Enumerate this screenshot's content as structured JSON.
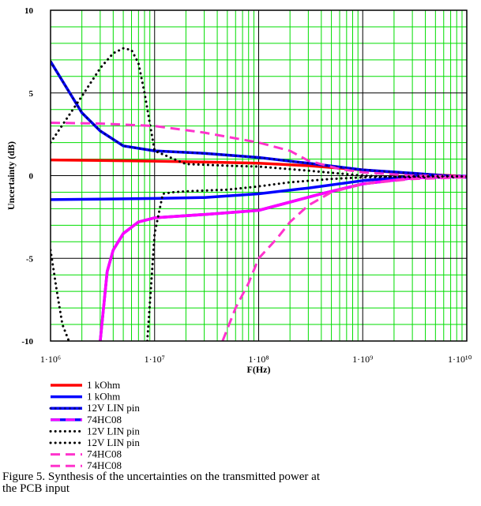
{
  "chart_data": {
    "type": "line",
    "title": "",
    "xlabel": "F(Hz)",
    "ylabel": "Uncertainty (dB)",
    "xscale": "log",
    "xlim": [
      1000000,
      10000000000
    ],
    "ylim": [
      -10,
      10
    ],
    "xticks": [
      "1·10⁶",
      "1·10⁷",
      "1·10⁸",
      "1·10⁹",
      "1·10¹⁰"
    ],
    "yticks": [
      "10",
      "5",
      "0",
      "-5",
      "-10"
    ],
    "grid": true,
    "legend_position": "bottom-left",
    "series": [
      {
        "name": "1 kOhm",
        "color": "#ff0000",
        "style": "solid",
        "x": [
          1000000,
          3000000,
          10000000,
          30000000,
          100000000,
          300000000,
          1000000000,
          3000000000,
          10000000000
        ],
        "y": [
          0.95,
          0.92,
          0.88,
          0.82,
          0.75,
          0.6,
          0.35,
          0.12,
          -0.05
        ]
      },
      {
        "name": "1 kOhm",
        "color": "#0000ff",
        "style": "solid",
        "x": [
          1000000,
          3000000,
          10000000,
          30000000,
          100000000,
          300000000,
          1000000000,
          3000000000,
          10000000000
        ],
        "y": [
          -1.45,
          -1.42,
          -1.38,
          -1.32,
          -1.1,
          -0.75,
          -0.3,
          -0.05,
          -0.03
        ]
      },
      {
        "name": "12V LIN pin",
        "color": "#000080",
        "style": "dotted",
        "x": [
          1000000,
          2000000,
          3000000,
          5000000,
          10000000,
          30000000,
          100000000,
          300000000,
          1000000000,
          3000000000,
          10000000000
        ],
        "y": [
          6.9,
          3.8,
          2.7,
          1.8,
          1.5,
          1.35,
          1.1,
          0.75,
          0.35,
          0.15,
          -0.1
        ]
      },
      {
        "name": "74HC08",
        "color": "#ff00ff",
        "style": "solid",
        "x": [
          3000000,
          3500000,
          4000000,
          5000000,
          7000000,
          10000000,
          30000000,
          100000000,
          200000000,
          400000000,
          1000000000,
          3000000000,
          10000000000
        ],
        "y": [
          -10,
          -5.8,
          -4.5,
          -3.5,
          -2.8,
          -2.55,
          -2.35,
          -2.1,
          -1.6,
          -1.1,
          -0.5,
          -0.15,
          -0.05
        ]
      },
      {
        "name": "12V LIN pin",
        "color": "#000000",
        "style": "dotted",
        "x": [
          1000000,
          2000000,
          3000000,
          4000000,
          5000000,
          6000000,
          7000000,
          8000000,
          10000000,
          20000000,
          50000000,
          100000000,
          300000000,
          1000000000,
          3000000000,
          10000000000
        ],
        "y": [
          2.0,
          4.8,
          6.5,
          7.4,
          7.7,
          7.6,
          6.8,
          5.0,
          1.5,
          0.7,
          0.6,
          0.55,
          0.3,
          0.0,
          -0.1,
          -0.1
        ]
      },
      {
        "name": "12V LIN pin",
        "color": "#000000",
        "style": "dotted",
        "x": [
          1000000,
          1150000,
          1300000,
          1500000
        ],
        "y": [
          -4.5,
          -7.0,
          -9.0,
          -10.0
        ]
      },
      {
        "name": "74HC08",
        "color": "#ff33cc",
        "style": "dashed",
        "x": [
          1000000,
          3000000,
          10000000,
          30000000,
          100000000,
          200000000,
          300000000,
          600000000,
          1000000000,
          3000000000,
          10000000000
        ],
        "y": [
          3.2,
          3.15,
          3.0,
          2.6,
          2.0,
          1.5,
          0.9,
          0.4,
          0.2,
          0.0,
          -0.05
        ]
      },
      {
        "name": "74HC08",
        "color": "#ff33cc",
        "style": "dashed",
        "x": [
          45000000,
          60000000,
          80000000,
          100000000,
          150000000,
          200000000,
          300000000,
          500000000,
          1000000000,
          3000000000,
          10000000000
        ],
        "y": [
          -10,
          -8.0,
          -6.5,
          -5.0,
          -3.8,
          -2.8,
          -1.8,
          -1.0,
          -0.5,
          -0.2,
          -0.1
        ]
      }
    ],
    "extra_dotted": {
      "color": "#000000",
      "x": [
        8500000,
        10000000,
        12000000,
        15000000,
        20000000,
        30000000,
        50000000,
        100000000,
        200000000,
        500000000,
        1000000000,
        3000000000,
        10000000000
      ],
      "y": [
        -10,
        -3.5,
        -1.1,
        -1.0,
        -0.95,
        -0.9,
        -0.85,
        -0.65,
        -0.4,
        -0.2,
        -0.1,
        -0.05,
        -0.05
      ]
    }
  },
  "legend": [
    {
      "label": "1 kOhm",
      "color": "#ff0000",
      "style": "solid"
    },
    {
      "label": "1 kOhm",
      "color": "#0000ff",
      "style": "solid"
    },
    {
      "label": "12V LIN pin",
      "color": "#000080",
      "style": "dotted-on-blue"
    },
    {
      "label": "74HC08",
      "color": "#ff00ff",
      "style": "dashed-on-blue"
    },
    {
      "label": "12V LIN pin",
      "color": "#000000",
      "style": "dotted"
    },
    {
      "label": "12V LIN pin",
      "color": "#000000",
      "style": "dotted"
    },
    {
      "label": "74HC08",
      "color": "#ff33cc",
      "style": "dashed"
    },
    {
      "label": "74HC08",
      "color": "#ff33cc",
      "style": "dashed"
    }
  ],
  "caption": {
    "line1": "Figure 5.   Synthesis of the uncertainties on the transmitted power at",
    "line2": "the PCB input"
  }
}
